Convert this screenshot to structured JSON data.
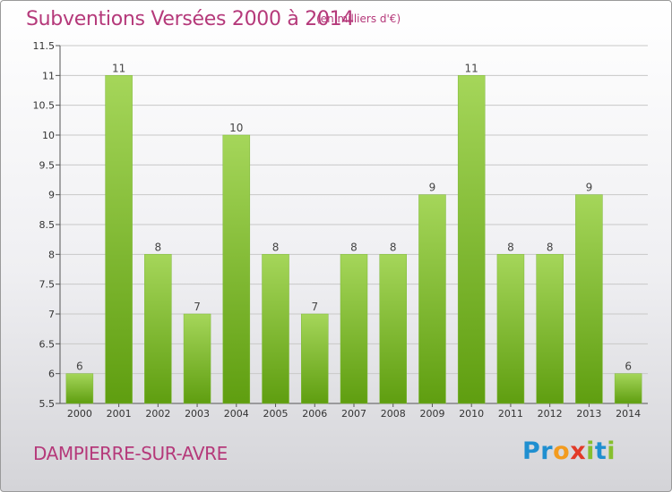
{
  "header": {
    "title": "Subventions Versées 2000 à 2014",
    "unit_note": "(en milliers d'€)"
  },
  "footer": {
    "commune": "DAMPIERRE-SUR-AVRE",
    "brand_letters": [
      "P",
      "r",
      "o",
      "x",
      "i",
      "t",
      "i"
    ]
  },
  "colors": {
    "title": "#b5397a",
    "bar_light": "#a5d65a",
    "bar_dark": "#5f9e10",
    "grid": "#c8c8c8"
  },
  "chart_data": {
    "type": "bar",
    "title": "Subventions Versées 2000 à 2014",
    "subtitle": "(en milliers d'€)",
    "categories": [
      "2000",
      "2001",
      "2002",
      "2003",
      "2004",
      "2005",
      "2006",
      "2007",
      "2008",
      "2009",
      "2010",
      "2011",
      "2012",
      "2013",
      "2014"
    ],
    "values": [
      6,
      11,
      8,
      7,
      10,
      8,
      7,
      8,
      8,
      9,
      11,
      8,
      8,
      9,
      6
    ],
    "data_labels": [
      "6",
      "11",
      "8",
      "7",
      "10",
      "8",
      "7",
      "8",
      "8",
      "9",
      "11",
      "8",
      "8",
      "9",
      "6"
    ],
    "ylim": [
      5.5,
      11.5
    ],
    "yticks": [
      5.5,
      6,
      6.5,
      7,
      7.5,
      8,
      8.5,
      9,
      9.5,
      10,
      10.5,
      11,
      11.5
    ],
    "ytick_labels": [
      "5.5",
      "6",
      "6.5",
      "7",
      "7.5",
      "8",
      "8.5",
      "9",
      "9.5",
      "10",
      "10.5",
      "11",
      "11.5"
    ],
    "grid": true,
    "xlabel": "",
    "ylabel": ""
  }
}
